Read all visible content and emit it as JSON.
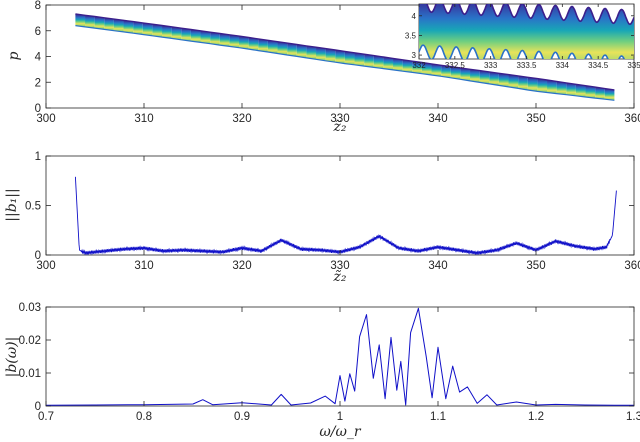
{
  "chart_data": [
    {
      "type": "scatter",
      "xlabel": "z̃₂",
      "ylabel": "p",
      "xlim": [
        300,
        360
      ],
      "ylim": [
        0,
        8
      ],
      "xticks": [
        "300",
        "310",
        "320",
        "330",
        "340",
        "350",
        "360"
      ],
      "yticks": [
        "0",
        "2",
        "4",
        "6",
        "8"
      ],
      "band": {
        "x": [
          303,
          310,
          320,
          330,
          340,
          350,
          358
        ],
        "upper": [
          7.3,
          6.6,
          5.55,
          4.45,
          3.35,
          2.3,
          1.4
        ],
        "lower": [
          6.4,
          5.7,
          4.65,
          3.5,
          2.5,
          1.3,
          0.6
        ]
      },
      "inset": {
        "xlim": [
          332,
          335
        ],
        "ylim": [
          2.9,
          4.3
        ],
        "xticks": [
          "332",
          "332.5",
          "333",
          "333.5",
          "334",
          "334.5",
          "335"
        ],
        "yticks": [
          "3",
          "3.5",
          "4"
        ],
        "oscillation_periods": 13
      },
      "grid": false,
      "colormap": [
        "#3b1f8c",
        "#2a72c8",
        "#18a7b6",
        "#6fcf80",
        "#e8e35a"
      ]
    },
    {
      "type": "line",
      "xlabel": "z̃₂",
      "ylabel": "||b₁||",
      "xlim": [
        300,
        360
      ],
      "ylim": [
        0,
        1
      ],
      "xticks": [
        "300",
        "310",
        "320",
        "330",
        "340",
        "350",
        "360"
      ],
      "yticks": [
        "0",
        "0.5",
        "1"
      ],
      "color": "#1010c8",
      "series": [
        {
          "x": [
            303,
            303.4,
            304,
            306,
            308,
            310,
            312,
            314,
            316,
            318,
            320,
            322,
            324,
            326,
            328,
            330,
            332,
            334,
            336,
            338,
            340,
            342,
            344,
            346,
            348,
            350,
            352,
            354,
            356,
            357.2,
            357.8,
            358.2
          ],
          "y": [
            0.79,
            0.05,
            0.02,
            0.04,
            0.06,
            0.07,
            0.04,
            0.05,
            0.04,
            0.03,
            0.07,
            0.04,
            0.15,
            0.06,
            0.05,
            0.03,
            0.08,
            0.19,
            0.07,
            0.04,
            0.08,
            0.05,
            0.02,
            0.05,
            0.12,
            0.05,
            0.14,
            0.09,
            0.06,
            0.08,
            0.2,
            0.65
          ]
        }
      ],
      "grid": false
    },
    {
      "type": "line",
      "xlabel": "ω/ω_r",
      "ylabel": "|b(ω)|",
      "xlim": [
        0.7,
        1.3
      ],
      "ylim": [
        0,
        0.03
      ],
      "xticks": [
        "0.7",
        "0.8",
        "0.9",
        "1",
        "1.1",
        "1.2",
        "1.3"
      ],
      "yticks": [
        "0",
        "0.01",
        "0.02",
        "0.03"
      ],
      "color": "#1010c8",
      "series": [
        {
          "x": [
            0.7,
            0.75,
            0.8,
            0.85,
            0.86,
            0.87,
            0.9,
            0.93,
            0.94,
            0.95,
            0.97,
            0.985,
            0.995,
            1.0,
            1.005,
            1.01,
            1.015,
            1.02,
            1.027,
            1.034,
            1.04,
            1.046,
            1.052,
            1.058,
            1.062,
            1.067,
            1.072,
            1.08,
            1.088,
            1.094,
            1.1,
            1.108,
            1.115,
            1.122,
            1.13,
            1.14,
            1.15,
            1.16,
            1.18,
            1.2,
            1.22,
            1.25,
            1.28,
            1.3
          ],
          "y": [
            0.0002,
            0.0003,
            0.0004,
            0.0006,
            0.0019,
            0.0004,
            0.001,
            0.0003,
            0.0035,
            0.0003,
            0.0009,
            0.003,
            0.0007,
            0.0092,
            0.0015,
            0.0098,
            0.0045,
            0.021,
            0.0277,
            0.0084,
            0.0185,
            0.0022,
            0.0208,
            0.0048,
            0.0135,
            0.0003,
            0.0222,
            0.0296,
            0.015,
            0.0025,
            0.0178,
            0.0022,
            0.0121,
            0.0042,
            0.0058,
            0.0008,
            0.0034,
            0.0003,
            0.0012,
            0.0003,
            0.0005,
            0.0003,
            0.0002,
            0.0002
          ]
        }
      ],
      "grid": false
    }
  ]
}
